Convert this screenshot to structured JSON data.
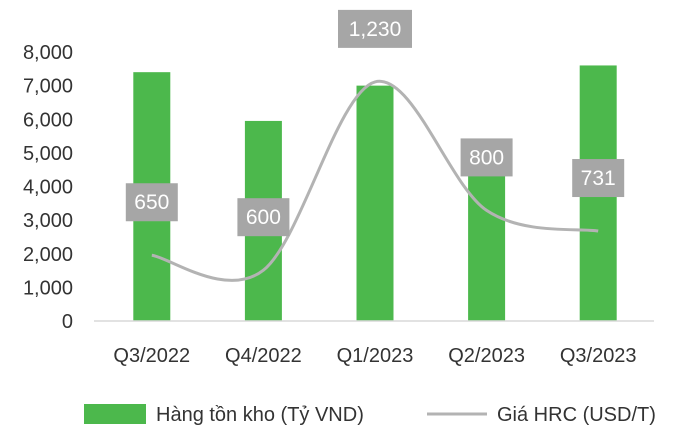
{
  "chart_data": {
    "type": "bar",
    "categories": [
      "Q3/2022",
      "Q4/2022",
      "Q1/2023",
      "Q2/2023",
      "Q3/2023"
    ],
    "series": [
      {
        "name": "Hàng tồn kho (Tỷ VND)",
        "kind": "bar",
        "axis": "left",
        "color": "#4cb84c",
        "values": [
          7400,
          5950,
          7000,
          5200,
          7600
        ]
      },
      {
        "name": "Giá HRC (USD/T)",
        "kind": "line",
        "axis": "secondary-hidden",
        "color": "#b3b3b3",
        "values": [
          650,
          600,
          1230,
          800,
          731
        ],
        "labels": [
          "650",
          "600",
          "1,230",
          "800",
          "731"
        ]
      }
    ],
    "y_ticks": [
      "0",
      "1,000",
      "2,000",
      "3,000",
      "4,000",
      "5,000",
      "6,000",
      "7,000",
      "8,000"
    ],
    "ylim": [
      0,
      8000
    ],
    "grid": false,
    "legend_position": "bottom",
    "label_box_color": "#a6a6a6"
  }
}
